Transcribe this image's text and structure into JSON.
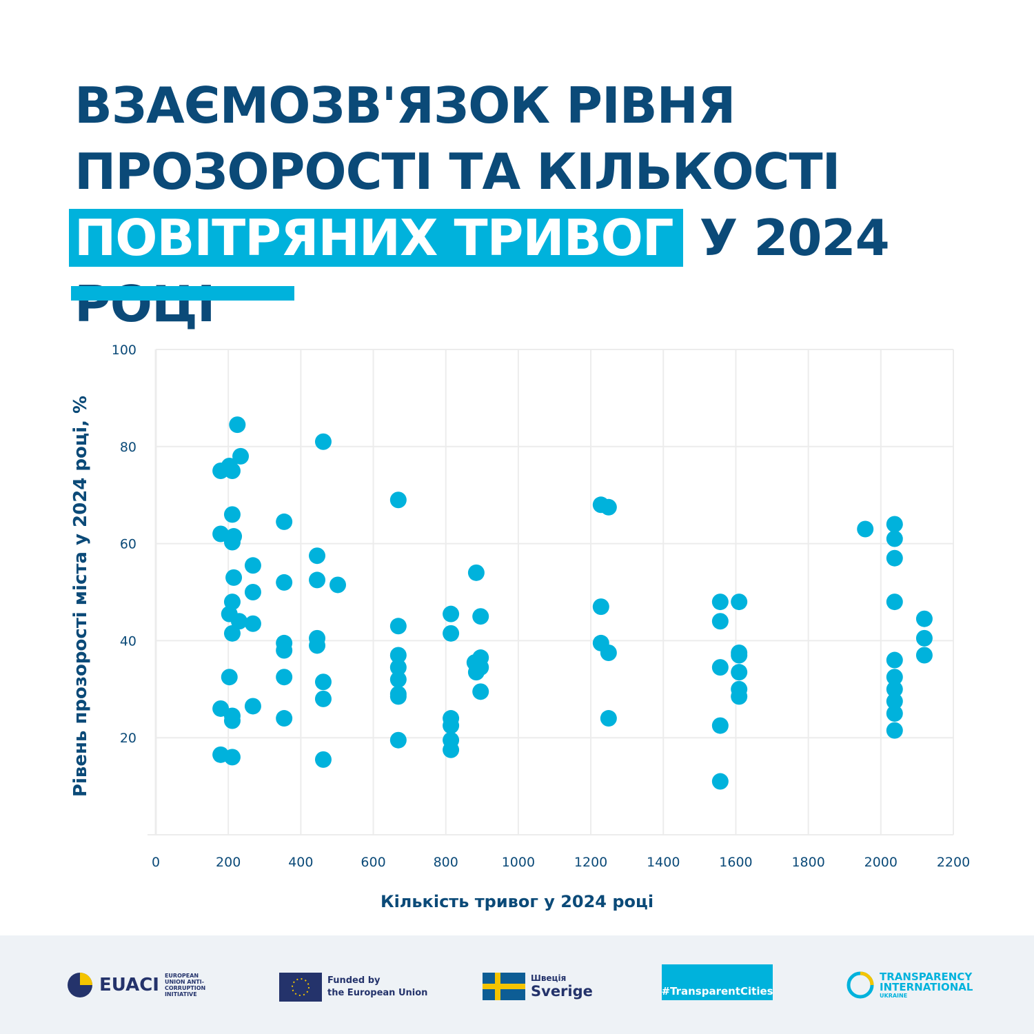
{
  "title": {
    "line1": "ВЗАЄМОЗВ'ЯЗОК РІВНЯ",
    "line2": "ПРОЗОРОСТІ ТА КІЛЬКОСТІ",
    "highlight": "ПОВІТРЯНИХ ТРИВОГ",
    "line3_rest": "У 2024 РОЦІ"
  },
  "colors": {
    "title": "#0b4a78",
    "accent": "#00b2dc",
    "footer_bg": "#eef2f6"
  },
  "chart_data": {
    "type": "scatter",
    "xlabel": "Кількість тривог у 2024 році",
    "ylabel": "Рівень прозорості міста у 2024 році, %",
    "xlim": [
      0,
      2200
    ],
    "ylim": [
      0,
      100
    ],
    "xticks": [
      "0",
      "200",
      "400",
      "600",
      "800",
      "1000",
      "1200",
      "1400",
      "1600",
      "1800",
      "2000",
      "2200"
    ],
    "yticks": [
      "20",
      "40",
      "60",
      "80",
      "100"
    ],
    "grid": true,
    "color": "#00b2dc",
    "points": [
      [
        225,
        84.5
      ],
      [
        234,
        78
      ],
      [
        179,
        75
      ],
      [
        203,
        76
      ],
      [
        211,
        75
      ],
      [
        211,
        66
      ],
      [
        179,
        62
      ],
      [
        215,
        61.5
      ],
      [
        211,
        60.3
      ],
      [
        215,
        53
      ],
      [
        211,
        48
      ],
      [
        203,
        45.5
      ],
      [
        230,
        44
      ],
      [
        211,
        41.5
      ],
      [
        203,
        32.5
      ],
      [
        179,
        26
      ],
      [
        211,
        24.5
      ],
      [
        211,
        23.5
      ],
      [
        179,
        16.5
      ],
      [
        211,
        16
      ],
      [
        268,
        55.5
      ],
      [
        268,
        50
      ],
      [
        268,
        43.5
      ],
      [
        268,
        26.5
      ],
      [
        354,
        64.5
      ],
      [
        354,
        52
      ],
      [
        354,
        39.5
      ],
      [
        354,
        38
      ],
      [
        354,
        32.5
      ],
      [
        354,
        24
      ],
      [
        445,
        57.5
      ],
      [
        445,
        52.5
      ],
      [
        445,
        40.5
      ],
      [
        445,
        39
      ],
      [
        462,
        81
      ],
      [
        462,
        31.5
      ],
      [
        462,
        28
      ],
      [
        462,
        15.5
      ],
      [
        502,
        51.5
      ],
      [
        669,
        69
      ],
      [
        669,
        43
      ],
      [
        669,
        37
      ],
      [
        669,
        34.5
      ],
      [
        669,
        32
      ],
      [
        669,
        29
      ],
      [
        669,
        28.5
      ],
      [
        669,
        19.5
      ],
      [
        814,
        45.5
      ],
      [
        814,
        41.5
      ],
      [
        814,
        24
      ],
      [
        814,
        22.5
      ],
      [
        814,
        19.5
      ],
      [
        814,
        17.5
      ],
      [
        884,
        54
      ],
      [
        884,
        33.5
      ],
      [
        880,
        35.5
      ],
      [
        896,
        45
      ],
      [
        896,
        36.5
      ],
      [
        896,
        34.5
      ],
      [
        896,
        29.5
      ],
      [
        1228,
        68
      ],
      [
        1228,
        47
      ],
      [
        1228,
        39.5
      ],
      [
        1249,
        67.5
      ],
      [
        1249,
        37.5
      ],
      [
        1249,
        24
      ],
      [
        1557,
        48
      ],
      [
        1557,
        44
      ],
      [
        1557,
        34.5
      ],
      [
        1557,
        22.5
      ],
      [
        1557,
        11
      ],
      [
        1609,
        48
      ],
      [
        1609,
        37.5
      ],
      [
        1609,
        37
      ],
      [
        1609,
        33.5
      ],
      [
        1609,
        30
      ],
      [
        1609,
        28.5
      ],
      [
        1957,
        63
      ],
      [
        2038,
        64
      ],
      [
        2038,
        61
      ],
      [
        2038,
        57
      ],
      [
        2038,
        48
      ],
      [
        2038,
        36
      ],
      [
        2038,
        32.5
      ],
      [
        2038,
        30
      ],
      [
        2038,
        27.5
      ],
      [
        2038,
        25
      ],
      [
        2038,
        21.5
      ],
      [
        2120,
        44.5
      ],
      [
        2120,
        40.5
      ],
      [
        2120,
        37
      ]
    ]
  },
  "footer": {
    "euaci": {
      "name": "EUACI",
      "sub": "EUROPEAN UNION ANTI-CORRUPTION INITIATIVE"
    },
    "eu": {
      "line1": "Funded by",
      "line2": "the European Union"
    },
    "sweden": {
      "line1": "Швеція",
      "line2": "Sverige"
    },
    "tc": {
      "label": "#TransparentCities"
    },
    "ti": {
      "line1": "TRANSPARENCY",
      "line2": "INTERNATIONAL",
      "line3": "UKRAINE"
    }
  }
}
